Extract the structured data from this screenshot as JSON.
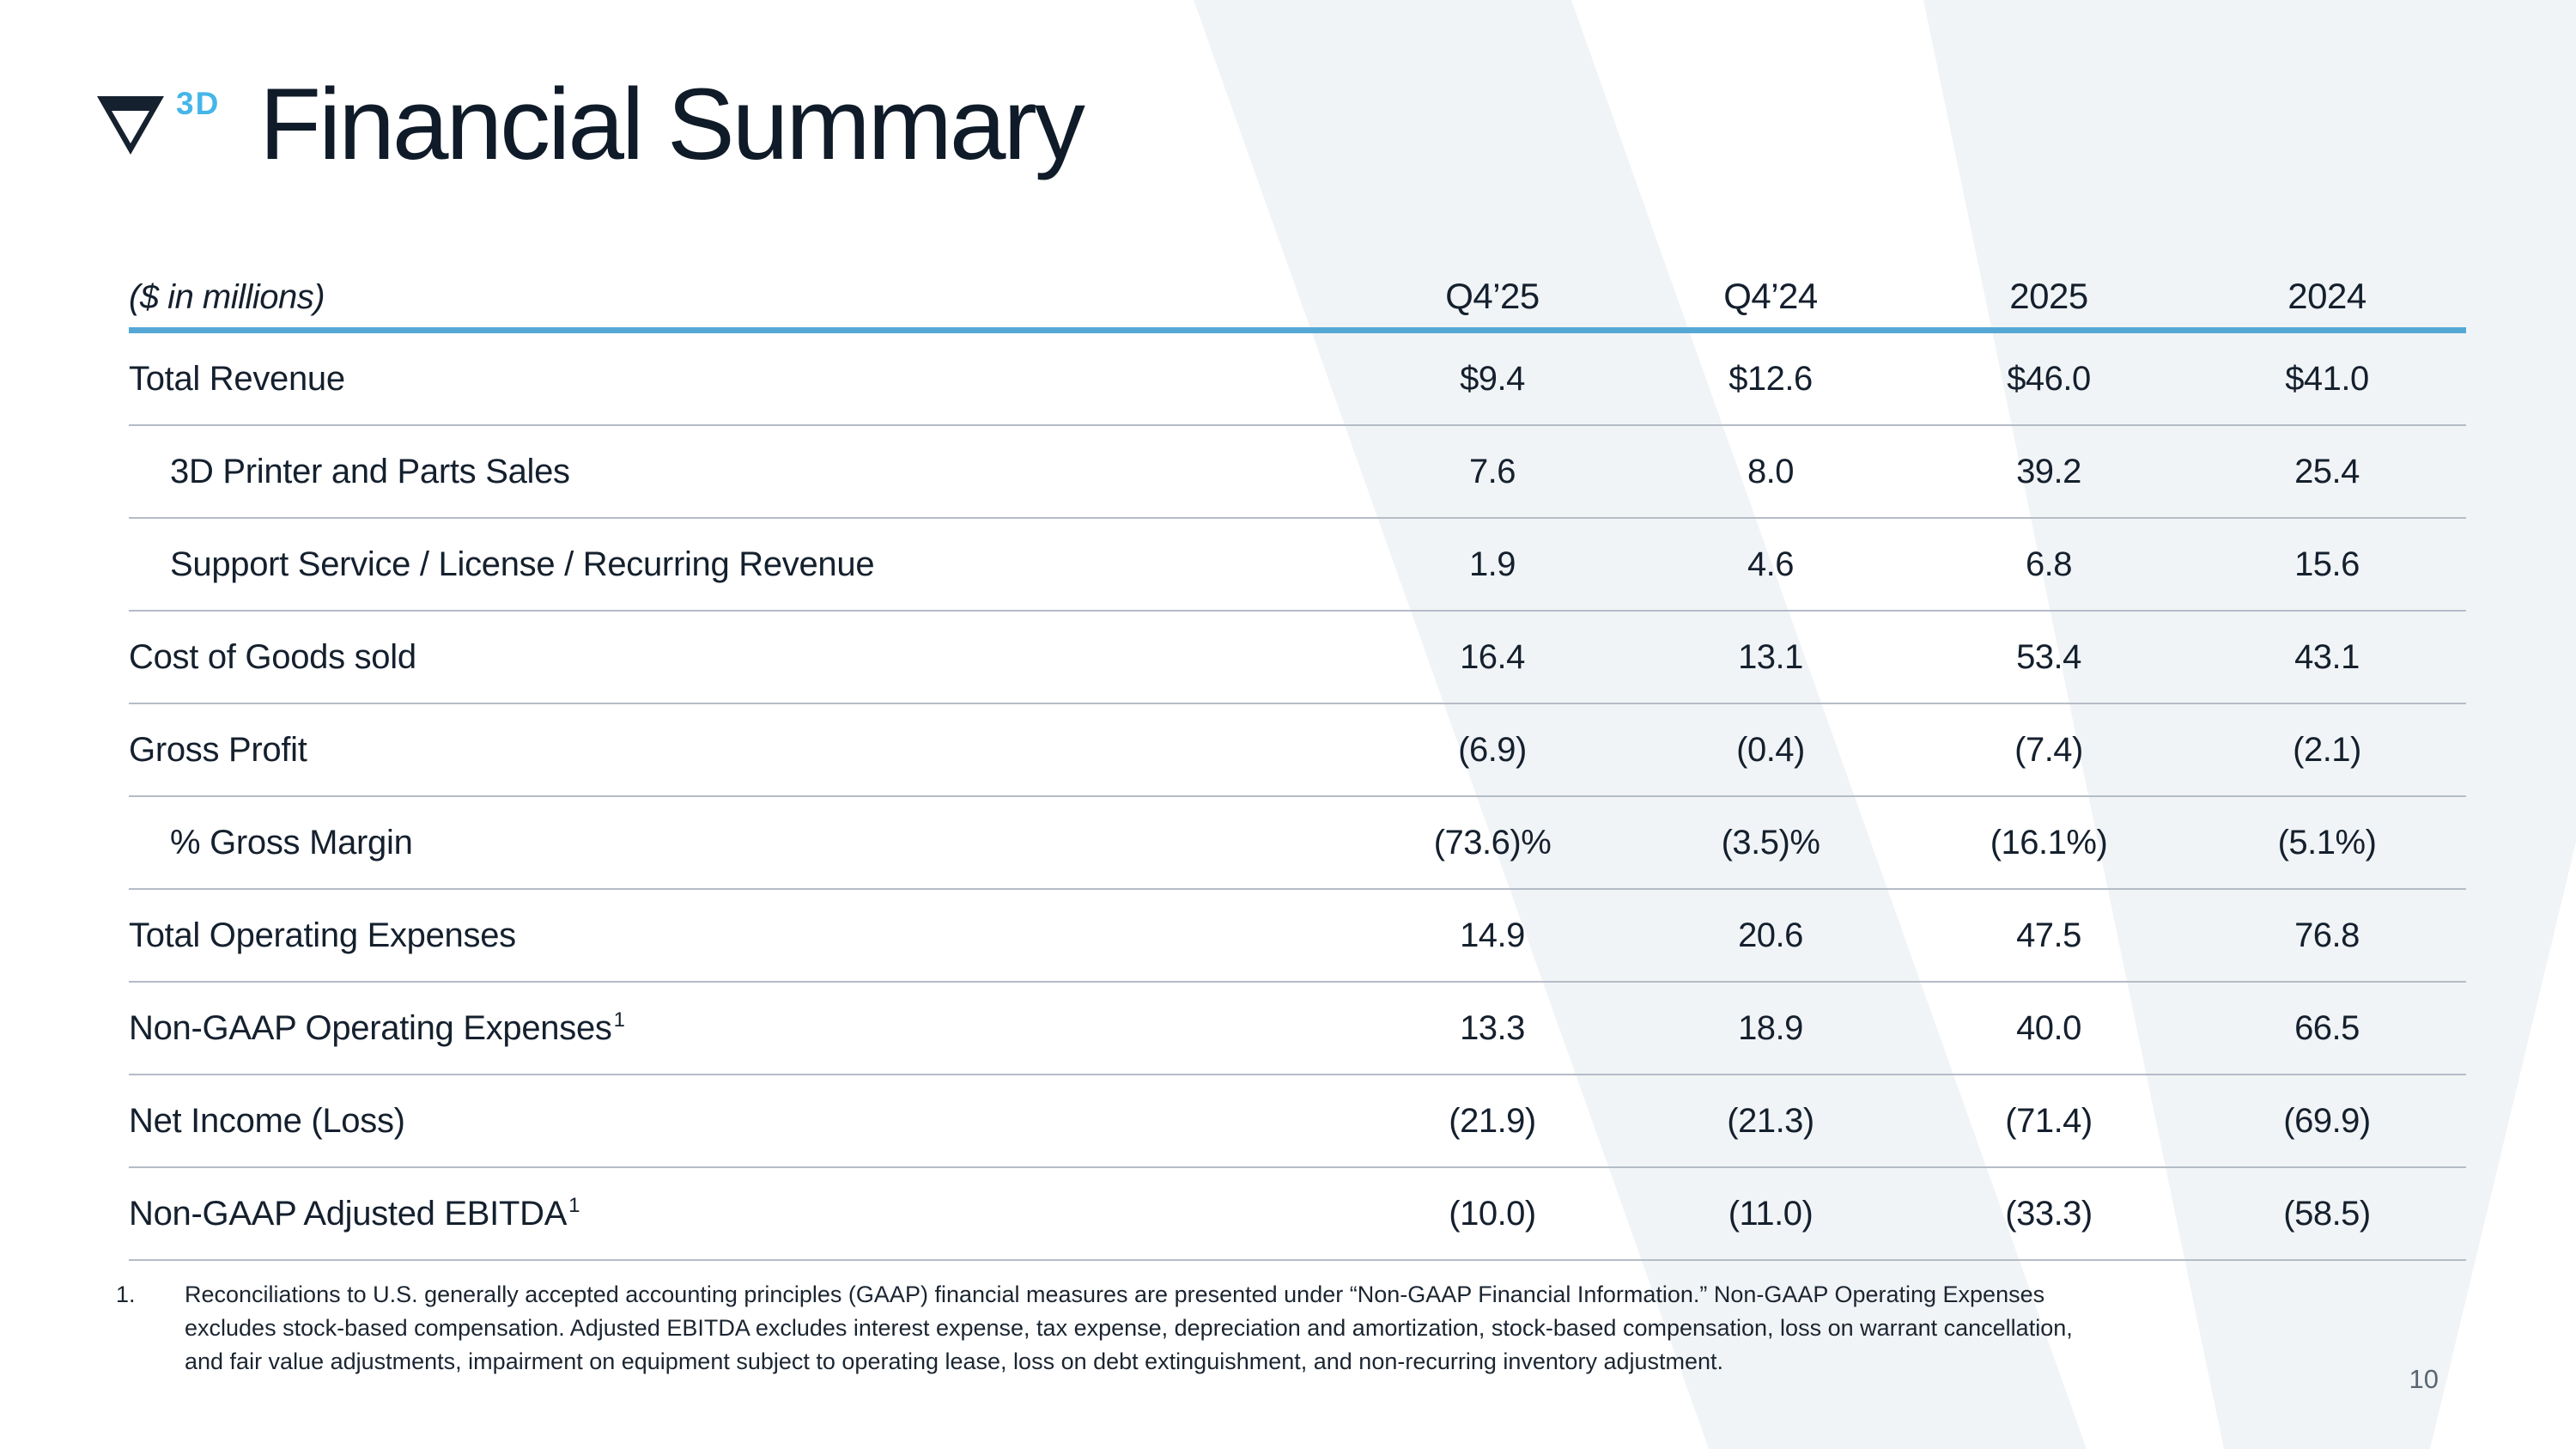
{
  "slide": {
    "title": "Financial Summary",
    "logo_sup": "3D",
    "page_number": "10"
  },
  "colors": {
    "text_dark": "#15202e",
    "title_dark": "#101b29",
    "logo_blue": "#45b6e8",
    "accent_rule_blue": "#55a8d5",
    "row_divider_gray": "#b5bcc7",
    "watermark_gray": "#f1f4f6",
    "page_number_gray": "#5a6673"
  },
  "chart_data": {
    "type": "table",
    "title": "Financial Summary",
    "unit_label": "($ in millions)",
    "columns": [
      "Q4’25",
      "Q4’24",
      "2025",
      "2024"
    ],
    "rows": [
      {
        "label": "Total Revenue",
        "indent": false,
        "sup": "",
        "values": [
          "$9.4",
          "$12.6",
          "$46.0",
          "$41.0"
        ]
      },
      {
        "label": "3D Printer and Parts Sales",
        "indent": true,
        "sup": "",
        "values": [
          "7.6",
          "8.0",
          "39.2",
          "25.4"
        ]
      },
      {
        "label": "Support Service / License / Recurring Revenue",
        "indent": true,
        "sup": "",
        "values": [
          "1.9",
          "4.6",
          "6.8",
          "15.6"
        ]
      },
      {
        "label": "Cost of Goods sold",
        "indent": false,
        "sup": "",
        "values": [
          "16.4",
          "13.1",
          "53.4",
          "43.1"
        ]
      },
      {
        "label": "Gross Profit",
        "indent": false,
        "sup": "",
        "values": [
          "(6.9)",
          "(0.4)",
          "(7.4)",
          "(2.1)"
        ]
      },
      {
        "label": "% Gross Margin",
        "indent": true,
        "sup": "",
        "values": [
          "(73.6)%",
          "(3.5)%",
          "(16.1%)",
          "(5.1%)"
        ]
      },
      {
        "label": "Total Operating Expenses",
        "indent": false,
        "sup": "",
        "values": [
          "14.9",
          "20.6",
          "47.5",
          "76.8"
        ]
      },
      {
        "label": "Non-GAAP Operating Expenses",
        "indent": false,
        "sup": "1",
        "values": [
          "13.3",
          "18.9",
          "40.0",
          "66.5"
        ]
      },
      {
        "label": "Net Income (Loss)",
        "indent": false,
        "sup": "",
        "values": [
          "(21.9)",
          "(21.3)",
          "(71.4)",
          "(69.9)"
        ]
      },
      {
        "label": "Non-GAAP Adjusted EBITDA",
        "indent": false,
        "sup": "1",
        "values": [
          "(10.0)",
          "(11.0)",
          "(33.3)",
          "(58.5)"
        ]
      }
    ]
  },
  "footnote": {
    "number": "1.",
    "lines": [
      "Reconciliations to U.S. generally accepted accounting principles (GAAP) financial measures are presented under “Non-GAAP Financial Information.”  Non-GAAP Operating Expenses",
      "excludes stock-based compensation. Adjusted EBITDA excludes interest expense, tax expense, depreciation and amortization, stock-based compensation, loss on warrant cancellation,",
      "and fair value adjustments, impairment on equipment subject to operating lease, loss on debt extinguishment, and non-recurring inventory adjustment."
    ]
  }
}
